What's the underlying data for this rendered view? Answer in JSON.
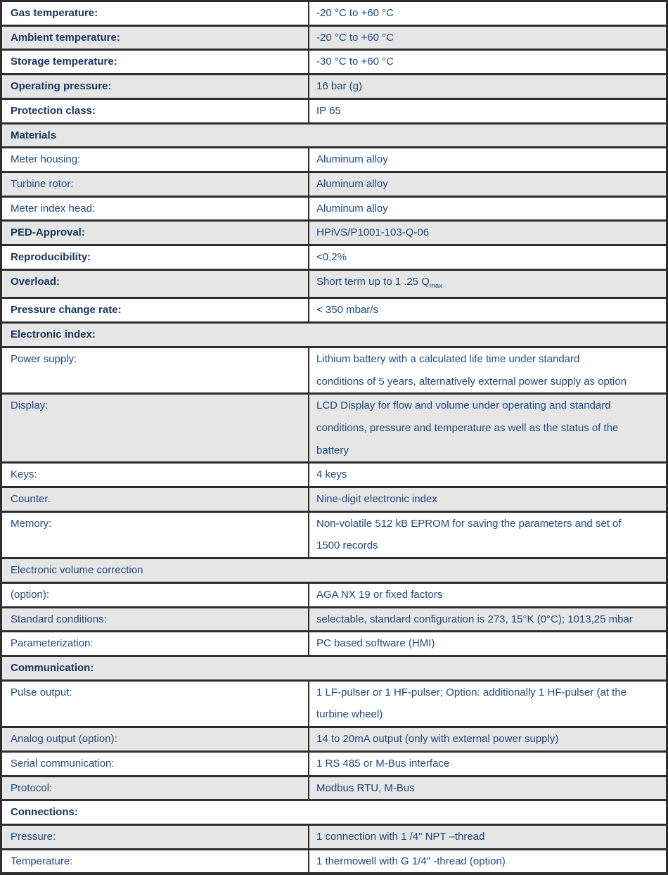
{
  "colors": {
    "text_blue": "#1F497D",
    "heading_blue": "#17365D",
    "row_shade_gray": "#E7E6E6",
    "row_white": "#FFFFFF",
    "border_dark": "#2E2E2E"
  },
  "table": {
    "rows": [
      {
        "kind": "pair",
        "label": "Gas temperature:",
        "value": "-20 °C to +60 °C"
      },
      {
        "kind": "pair",
        "label": "Ambient temperature:",
        "value": "-20 °C to +60 °C"
      },
      {
        "kind": "pair",
        "label": "Storage temperature:",
        "value": "-30 °C to +60 °C"
      },
      {
        "kind": "pair",
        "label": "Operating pressure:",
        "value": "16 bar (g)"
      },
      {
        "kind": "pair",
        "label": "Protection class:",
        "value": "IP 65"
      },
      {
        "kind": "section",
        "label": "Materials"
      },
      {
        "kind": "pair",
        "label": "Meter housing:",
        "value": "Aluminum alloy"
      },
      {
        "kind": "pair",
        "label": "Turbine rotor:",
        "value": "Aluminum alloy"
      },
      {
        "kind": "pair",
        "label": "Meter index head:",
        "value": "Aluminum alloy"
      },
      {
        "kind": "pair",
        "label": "PED-Approval:",
        "value": "HPiVS/P1001-103-Q-06"
      },
      {
        "kind": "pair",
        "label": "Reproducibility:",
        "value": "<0,2%"
      },
      {
        "kind": "pair",
        "label": "Overload:",
        "value": "Short term up to 1 .25 Q",
        "value_sub": "max"
      },
      {
        "kind": "pair",
        "label": "Pressure change rate:",
        "value": "< 350 mbar/s"
      },
      {
        "kind": "section",
        "label": "Electronic index:"
      },
      {
        "kind": "pair",
        "label": "Power supply:",
        "value": "Lithium battery with a calculated life time under standard\nconditions of 5 years, alternatively external power supply as option"
      },
      {
        "kind": "pair",
        "label": "Display:",
        "value": "LCD Display for flow and volume under operating and standard\nconditions, pressure and temperature as well as the status of the\nbattery"
      },
      {
        "kind": "pair",
        "label": "Keys:",
        "value": "4 keys"
      },
      {
        "kind": "pair",
        "label": "Counter.",
        "value": "Nine-digit electronic index"
      },
      {
        "kind": "pair",
        "label": "Memory:",
        "value": "Non-volatile 512 kB EPROM for saving the parameters and set of\n1500 records"
      },
      {
        "kind": "section",
        "label": "Electronic volume correction"
      },
      {
        "kind": "pair",
        "label": "(option):",
        "value": "AGA NX 19 or fixed factors"
      },
      {
        "kind": "pair",
        "label": "Standard conditions:",
        "value": "selectable, standard configuration is 273, 15°K (0°C); 1013,25 mbar"
      },
      {
        "kind": "pair",
        "label": "Parameterization:",
        "value": "PC based software (HMI)"
      },
      {
        "kind": "section",
        "label": "Communication:"
      },
      {
        "kind": "pair",
        "label": "Pulse output:",
        "value": "1 LF-pulser or 1 HF-pulser; Option: additionally 1 HF-pulser (at the\nturbine wheel)"
      },
      {
        "kind": "pair",
        "label": "Analog output (option):",
        "value": "14 to 20mA output (only with external power supply)"
      },
      {
        "kind": "pair",
        "label": "Serial communication:",
        "value": "1 RS 485 or M-Bus interface"
      },
      {
        "kind": "pair",
        "label": "Protocol:",
        "value": "Modbus RTU, M-Bus"
      },
      {
        "kind": "section",
        "label": "Connections:"
      },
      {
        "kind": "pair",
        "label": "Pressure:",
        "value": "1 connection with 1 /4\" NPT –thread"
      },
      {
        "kind": "pair",
        "label": "Temperature:",
        "value": "1 thermowell with G 1/4\" -thread (option)"
      }
    ]
  }
}
